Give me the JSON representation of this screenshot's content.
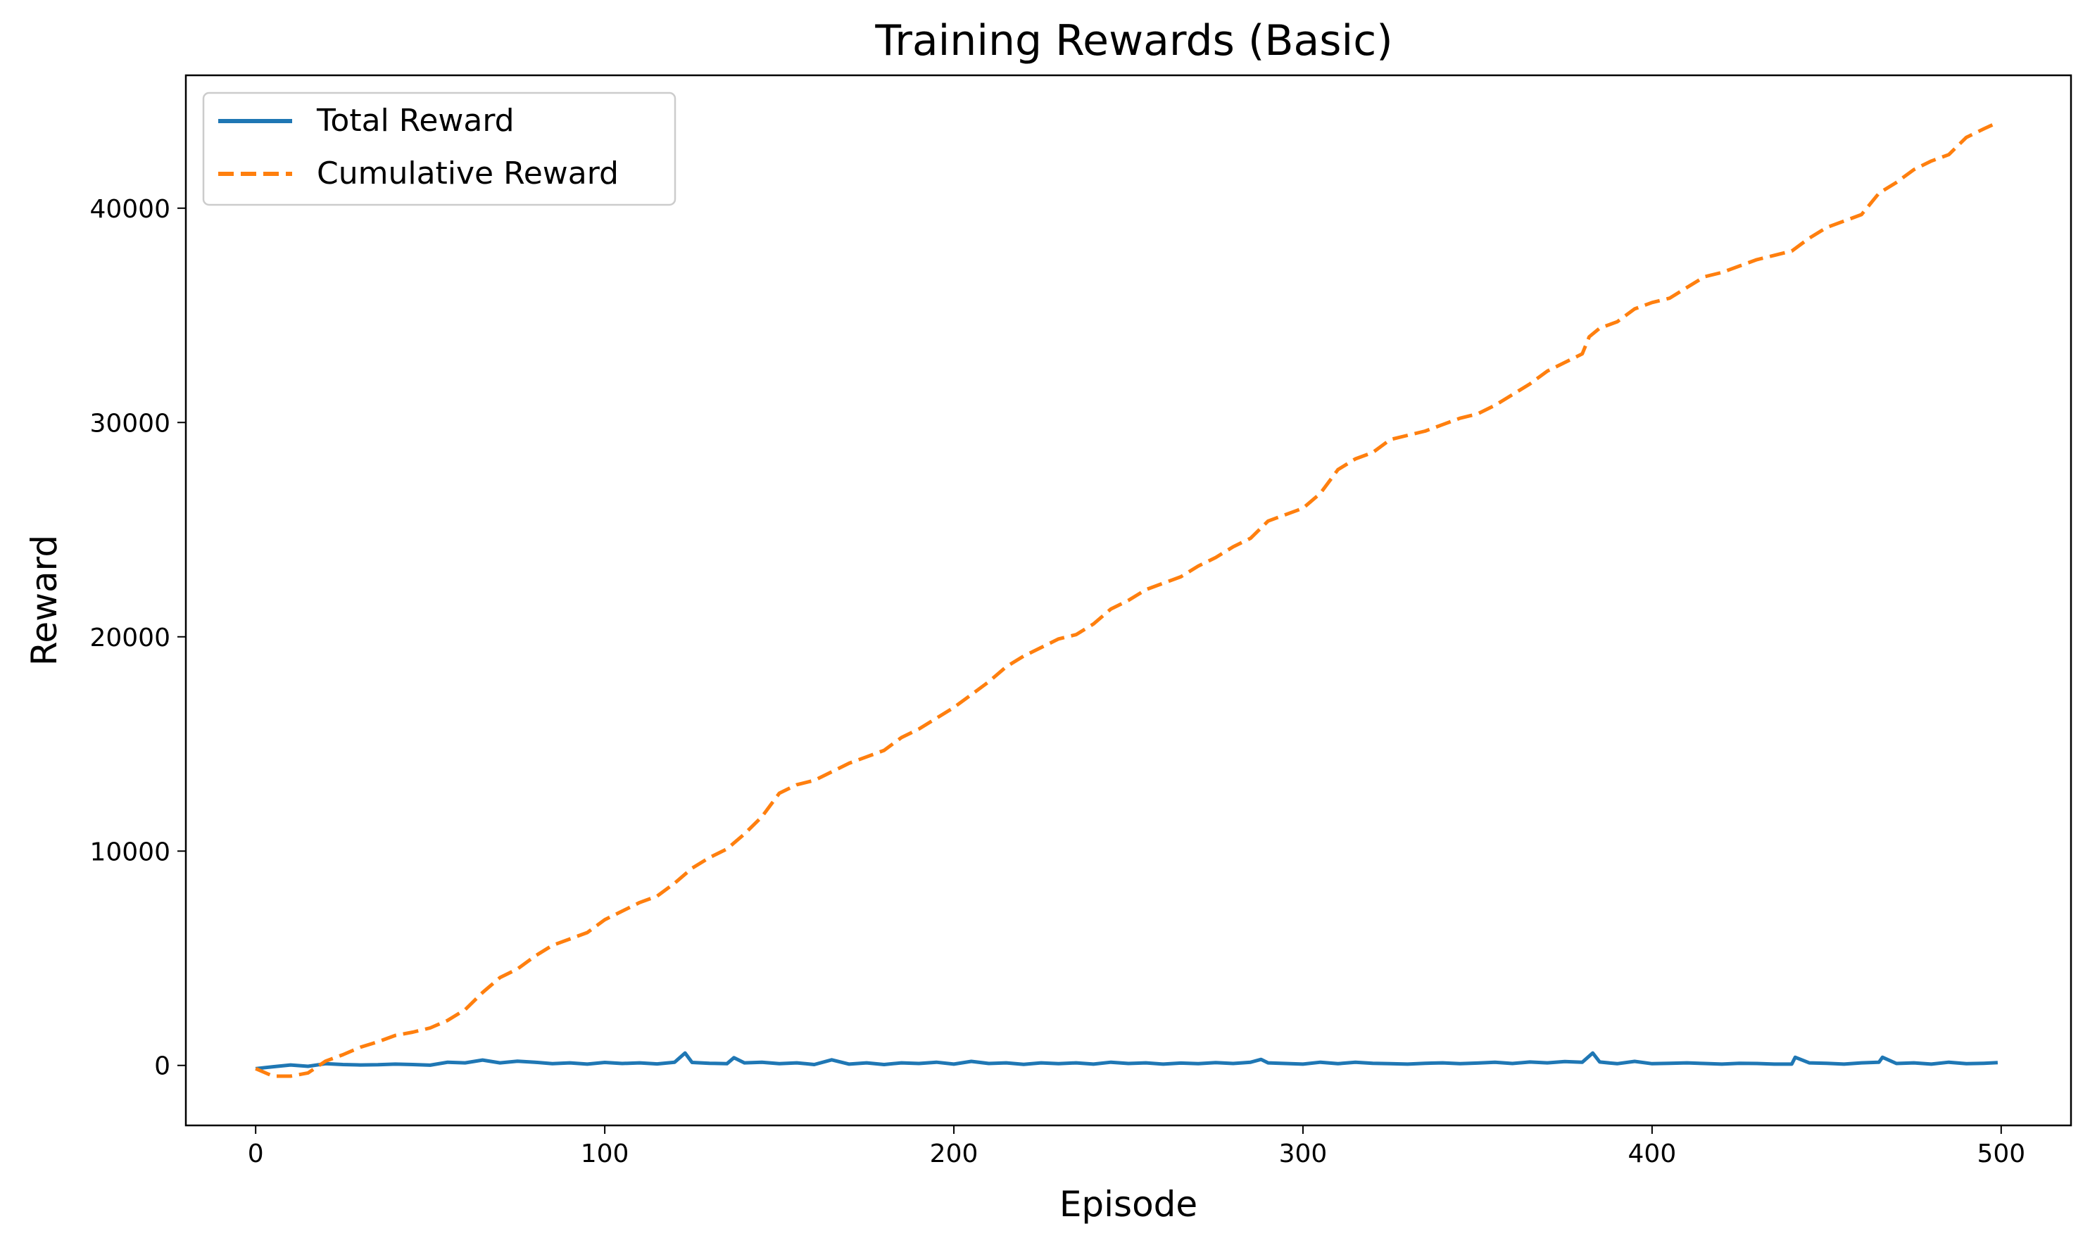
{
  "chart_data": {
    "type": "line",
    "title": "Training Rewards (Basic)",
    "xlabel": "Episode",
    "ylabel": "Reward",
    "xlim": [
      -20,
      520
    ],
    "ylim": [
      -2800,
      46200
    ],
    "xticks": [
      0,
      100,
      200,
      300,
      400,
      500
    ],
    "yticks": [
      0,
      10000,
      20000,
      30000,
      40000
    ],
    "grid": false,
    "legend_position": "upper-left",
    "series": [
      {
        "name": "Total Reward",
        "color": "#1f77b4",
        "style": "solid",
        "x": [
          0,
          5,
          10,
          15,
          20,
          25,
          30,
          35,
          40,
          45,
          50,
          55,
          60,
          65,
          70,
          75,
          80,
          85,
          90,
          95,
          100,
          105,
          110,
          115,
          120,
          123,
          125,
          130,
          135,
          137,
          140,
          145,
          150,
          155,
          160,
          165,
          170,
          175,
          180,
          185,
          190,
          195,
          200,
          205,
          210,
          215,
          220,
          225,
          230,
          235,
          240,
          245,
          250,
          255,
          260,
          265,
          270,
          275,
          280,
          285,
          288,
          290,
          295,
          300,
          305,
          310,
          315,
          320,
          325,
          330,
          335,
          340,
          345,
          350,
          355,
          360,
          365,
          370,
          375,
          380,
          383,
          385,
          390,
          395,
          400,
          405,
          410,
          415,
          420,
          425,
          430,
          435,
          440,
          441,
          445,
          450,
          455,
          460,
          465,
          466,
          470,
          475,
          480,
          485,
          490,
          495,
          499
        ],
        "y": [
          -150,
          -60,
          20,
          -40,
          80,
          40,
          20,
          30,
          60,
          40,
          10,
          150,
          120,
          250,
          120,
          200,
          150,
          80,
          120,
          60,
          140,
          90,
          120,
          70,
          150,
          580,
          140,
          100,
          80,
          360,
          120,
          150,
          80,
          120,
          40,
          260,
          60,
          120,
          40,
          120,
          90,
          150,
          60,
          190,
          90,
          120,
          50,
          120,
          80,
          120,
          60,
          150,
          90,
          120,
          60,
          110,
          80,
          130,
          90,
          150,
          280,
          120,
          90,
          60,
          150,
          80,
          150,
          100,
          80,
          60,
          100,
          120,
          80,
          110,
          150,
          90,
          160,
          120,
          180,
          150,
          580,
          160,
          80,
          190,
          80,
          100,
          120,
          90,
          60,
          100,
          90,
          60,
          60,
          380,
          120,
          100,
          60,
          120,
          150,
          380,
          90,
          120,
          60,
          150,
          80,
          100,
          130
        ]
      },
      {
        "name": "Cumulative Reward",
        "color": "#ff7f0e",
        "style": "dashed",
        "x": [
          0,
          5,
          10,
          15,
          20,
          25,
          30,
          35,
          40,
          45,
          50,
          55,
          60,
          65,
          70,
          75,
          80,
          85,
          90,
          95,
          100,
          105,
          110,
          115,
          120,
          125,
          130,
          135,
          140,
          145,
          150,
          155,
          160,
          165,
          170,
          175,
          180,
          185,
          190,
          195,
          200,
          205,
          210,
          215,
          220,
          225,
          230,
          235,
          240,
          245,
          250,
          255,
          260,
          265,
          270,
          275,
          280,
          285,
          290,
          295,
          300,
          305,
          310,
          315,
          320,
          325,
          330,
          335,
          340,
          345,
          350,
          355,
          360,
          365,
          370,
          375,
          380,
          382,
          385,
          390,
          395,
          400,
          405,
          410,
          415,
          420,
          425,
          430,
          435,
          440,
          445,
          450,
          455,
          460,
          465,
          470,
          475,
          480,
          485,
          490,
          495,
          499
        ],
        "y": [
          -150,
          -500,
          -500,
          -350,
          200,
          500,
          850,
          1100,
          1400,
          1550,
          1750,
          2100,
          2600,
          3400,
          4100,
          4500,
          5100,
          5600,
          5900,
          6200,
          6800,
          7200,
          7600,
          7900,
          8500,
          9200,
          9700,
          10100,
          10800,
          11600,
          12700,
          13100,
          13300,
          13700,
          14100,
          14400,
          14700,
          15300,
          15700,
          16200,
          16700,
          17300,
          17900,
          18600,
          19100,
          19500,
          19900,
          20100,
          20600,
          21300,
          21700,
          22200,
          22500,
          22800,
          23300,
          23700,
          24200,
          24600,
          25400,
          25700,
          26000,
          26700,
          27800,
          28300,
          28600,
          29200,
          29400,
          29600,
          29900,
          30200,
          30400,
          30800,
          31300,
          31800,
          32400,
          32800,
          33200,
          34000,
          34400,
          34700,
          35300,
          35600,
          35800,
          36300,
          36800,
          37000,
          37300,
          37600,
          37800,
          38000,
          38600,
          39100,
          39400,
          39700,
          40700,
          41200,
          41800,
          42200,
          42500,
          43300,
          43700,
          44000
        ]
      }
    ]
  }
}
